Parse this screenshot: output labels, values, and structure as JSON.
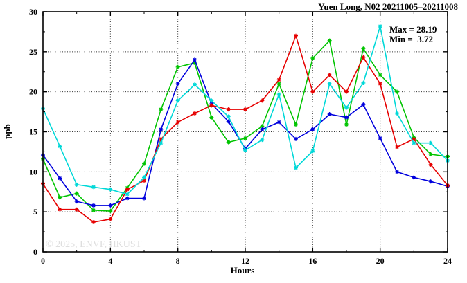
{
  "title": "Yuen Long, N02 20211005–20211008",
  "annotation": {
    "max_label": "Max = 28.19",
    "min_label": "Min =  3.72"
  },
  "watermark": "© 2025, ENVF, HKUST",
  "chart_data": {
    "type": "line",
    "title": "Yuen Long, N02 20211005–20211008",
    "xlabel": "Hours",
    "ylabel": "ppb",
    "xlim": [
      0,
      24
    ],
    "ylim": [
      0,
      30
    ],
    "x_ticks": [
      0,
      4,
      8,
      12,
      16,
      20,
      24
    ],
    "y_ticks": [
      0,
      5,
      10,
      15,
      20,
      25,
      30
    ],
    "x_minor_step": 2,
    "y_minor_step": 2.5,
    "grid": true,
    "legend": "none",
    "marker": "asterisk",
    "x": [
      0,
      1,
      2,
      3,
      4,
      5,
      6,
      7,
      8,
      9,
      10,
      11,
      12,
      13,
      14,
      15,
      16,
      17,
      18,
      19,
      20,
      21,
      22,
      23,
      24
    ],
    "series": [
      {
        "name": "green-series",
        "color": "#00c400",
        "values": [
          11.6,
          6.8,
          7.3,
          5.2,
          5.1,
          8.0,
          11.0,
          17.8,
          23.1,
          23.6,
          16.8,
          13.7,
          14.2,
          15.7,
          21.0,
          15.9,
          24.2,
          26.4,
          15.9,
          25.4,
          22.1,
          20.0,
          14.3,
          12.2,
          11.9
        ]
      },
      {
        "name": "blue-series",
        "color": "#0000dd",
        "values": [
          12.1,
          9.2,
          6.3,
          5.8,
          5.8,
          6.7,
          6.7,
          15.3,
          21.0,
          24.0,
          18.5,
          16.3,
          12.9,
          15.3,
          16.2,
          14.1,
          15.3,
          17.2,
          16.8,
          18.4,
          14.2,
          10.0,
          9.3,
          8.8,
          8.2
        ]
      },
      {
        "name": "red-series",
        "color": "#e60000",
        "values": [
          8.5,
          5.3,
          5.3,
          3.72,
          4.1,
          7.8,
          8.9,
          14.1,
          16.2,
          17.3,
          18.3,
          17.8,
          17.8,
          18.9,
          21.5,
          27.0,
          20.0,
          22.1,
          20.0,
          24.3,
          21.0,
          13.1,
          14.1,
          10.9,
          8.3
        ]
      },
      {
        "name": "cyan-series",
        "color": "#00d8d8",
        "values": [
          17.9,
          13.2,
          8.4,
          8.1,
          7.8,
          7.2,
          9.3,
          13.6,
          18.9,
          20.9,
          18.9,
          16.9,
          12.7,
          14.0,
          19.7,
          10.5,
          12.6,
          21.0,
          18.0,
          21.1,
          28.19,
          17.3,
          13.6,
          13.6,
          11.4
        ]
      }
    ],
    "stats": {
      "max": 28.19,
      "min": 3.72
    }
  }
}
